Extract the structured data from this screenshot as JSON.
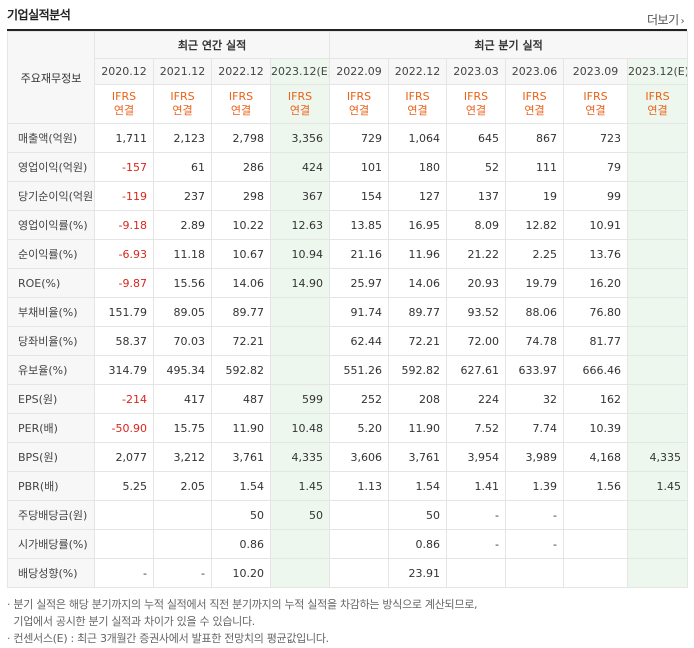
{
  "section_title": "기업실적분석",
  "more_label": "더보기",
  "more_icon": "chevron-right-icon",
  "header": {
    "row_label": "주요재무정보",
    "annual_group": "최근 연간 실적",
    "quarter_group": "최근 분기 실적",
    "annual_periods": [
      "2020.12",
      "2021.12",
      "2022.12",
      "2023.12(E)"
    ],
    "quarter_periods": [
      "2022.09",
      "2022.12",
      "2023.03",
      "2023.06",
      "2023.09",
      "2023.12(E)"
    ],
    "ifrs_top": "IFRS",
    "ifrs_bottom": "연결"
  },
  "rows": [
    {
      "label": "매출액(억원)",
      "annual": [
        "1,711",
        "2,123",
        "2,798",
        "3,356"
      ],
      "quarter": [
        "729",
        "1,064",
        "645",
        "867",
        "723",
        ""
      ]
    },
    {
      "label": "영업이익(억원)",
      "annual": [
        "-157",
        "61",
        "286",
        "424"
      ],
      "quarter": [
        "101",
        "180",
        "52",
        "111",
        "79",
        ""
      ]
    },
    {
      "label": "당기순이익(억원)",
      "annual": [
        "-119",
        "237",
        "298",
        "367"
      ],
      "quarter": [
        "154",
        "127",
        "137",
        "19",
        "99",
        ""
      ]
    },
    {
      "label": "영업이익률(%)",
      "annual": [
        "-9.18",
        "2.89",
        "10.22",
        "12.63"
      ],
      "quarter": [
        "13.85",
        "16.95",
        "8.09",
        "12.82",
        "10.91",
        ""
      ]
    },
    {
      "label": "순이익률(%)",
      "annual": [
        "-6.93",
        "11.18",
        "10.67",
        "10.94"
      ],
      "quarter": [
        "21.16",
        "11.96",
        "21.22",
        "2.25",
        "13.76",
        ""
      ]
    },
    {
      "label": "ROE(%)",
      "annual": [
        "-9.87",
        "15.56",
        "14.06",
        "14.90"
      ],
      "quarter": [
        "25.97",
        "14.06",
        "20.93",
        "19.79",
        "16.20",
        ""
      ]
    },
    {
      "label": "부채비율(%)",
      "annual": [
        "151.79",
        "89.05",
        "89.77",
        ""
      ],
      "quarter": [
        "91.74",
        "89.77",
        "93.52",
        "88.06",
        "76.80",
        ""
      ]
    },
    {
      "label": "당좌비율(%)",
      "annual": [
        "58.37",
        "70.03",
        "72.21",
        ""
      ],
      "quarter": [
        "62.44",
        "72.21",
        "72.00",
        "74.78",
        "81.77",
        ""
      ]
    },
    {
      "label": "유보율(%)",
      "annual": [
        "314.79",
        "495.34",
        "592.82",
        ""
      ],
      "quarter": [
        "551.26",
        "592.82",
        "627.61",
        "633.97",
        "666.46",
        ""
      ]
    },
    {
      "label": "EPS(원)",
      "annual": [
        "-214",
        "417",
        "487",
        "599"
      ],
      "quarter": [
        "252",
        "208",
        "224",
        "32",
        "162",
        ""
      ]
    },
    {
      "label": "PER(배)",
      "annual": [
        "-50.90",
        "15.75",
        "11.90",
        "10.48"
      ],
      "quarter": [
        "5.20",
        "11.90",
        "7.52",
        "7.74",
        "10.39",
        ""
      ]
    },
    {
      "label": "BPS(원)",
      "annual": [
        "2,077",
        "3,212",
        "3,761",
        "4,335"
      ],
      "quarter": [
        "3,606",
        "3,761",
        "3,954",
        "3,989",
        "4,168",
        "4,335"
      ]
    },
    {
      "label": "PBR(배)",
      "annual": [
        "5.25",
        "2.05",
        "1.54",
        "1.45"
      ],
      "quarter": [
        "1.13",
        "1.54",
        "1.41",
        "1.39",
        "1.56",
        "1.45"
      ]
    },
    {
      "label": "주당배당금(원)",
      "annual": [
        "",
        "",
        "50",
        "50"
      ],
      "quarter": [
        "",
        "50",
        "-",
        "-",
        "",
        ""
      ]
    },
    {
      "label": "시가배당률(%)",
      "annual": [
        "",
        "",
        "0.86",
        ""
      ],
      "quarter": [
        "",
        "0.86",
        "-",
        "-",
        "",
        ""
      ]
    },
    {
      "label": "배당성향(%)",
      "annual": [
        "-",
        "-",
        "10.20",
        ""
      ],
      "quarter": [
        "",
        "23.91",
        "",
        "",
        "",
        ""
      ]
    }
  ],
  "group_breaks_before": [
    3,
    6,
    9,
    13
  ],
  "notes": [
    "· 분기 실적은 해당 분기까지의 누적 실적에서 직전 분기까지의 누적 실적을 차감하는 방식으로 계산되므로,",
    "  기업에서 공시한 분기 실적과 차이가 있을 수 있습니다.",
    "· 컨센서스(E) : 최근 3개월간 증권사에서 발표한 전망치의 평균값입니다."
  ],
  "colors": {
    "ifrs": "#e8621a",
    "negative": "#d9261c",
    "estimate_bg": "#eef7ee",
    "label_bg": "#f7f7f7"
  }
}
